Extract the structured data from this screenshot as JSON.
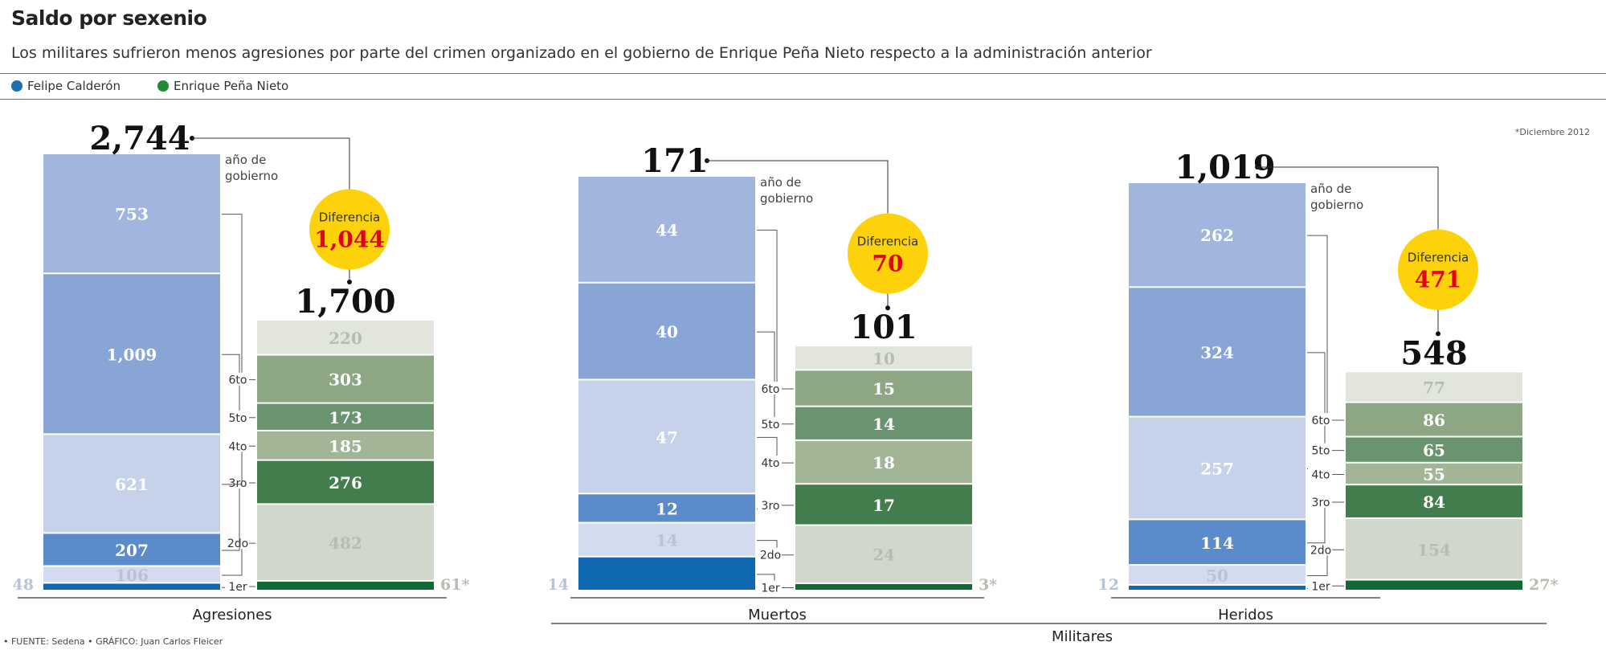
{
  "title": "Saldo por sexenio",
  "subtitle": "Los militares sufrieron menos agresiones por parte del crimen organizado en el gobierno de Enrique Peña Nieto respecto a la administración anterior",
  "legend": [
    {
      "name": "Felipe Calderón",
      "color": "#1a6fb5"
    },
    {
      "name": "Enrique Peña Nieto",
      "color": "#1e8a3a"
    }
  ],
  "footnote": "*Diciembre 2012",
  "source": "• FUENTE: Sedena • GRÁFICO: Juan Carlos Fleicer",
  "group_label": "Militares",
  "diff_label": "Diferencia",
  "year_label": "año de gobierno",
  "colors": {
    "calderon": [
      "#1068b3",
      "#d3dbee",
      "#5b8bcb",
      "#c6d1ea",
      "#88a5d6",
      "#a1b5de"
    ],
    "pena": [
      "#0f6a33",
      "#d1d8cb",
      "#437c4d",
      "#a2b597",
      "#6a9470",
      "#8da683",
      "#e1e5db"
    ],
    "diff_circle": "#fdd20a",
    "diff_text": "#e4001b"
  },
  "chart_data": [
    {
      "type": "stacked-bar",
      "name": "Agresiones",
      "year_labels": [
        "1er",
        "2do",
        "3ro",
        "4to",
        "5to",
        "6to"
      ],
      "calderon": {
        "total": "2,744",
        "values": [
          48,
          106,
          207,
          621,
          1009,
          753
        ],
        "labels": [
          "48",
          "106",
          "207",
          "621",
          "1,009",
          "753"
        ]
      },
      "pena": {
        "total": "1,700",
        "values": [
          61,
          482,
          276,
          185,
          173,
          303,
          220
        ],
        "labels": [
          "61*",
          "482",
          "276",
          "185",
          "173",
          "303",
          "220"
        ]
      },
      "difference": "1,044"
    },
    {
      "type": "stacked-bar",
      "name": "Muertos",
      "year_labels": [
        "1er",
        "2do",
        "3ro",
        "4to",
        "5to",
        "6to"
      ],
      "calderon": {
        "total": "171",
        "values": [
          14,
          14,
          12,
          47,
          40,
          44
        ],
        "labels": [
          "14",
          "14",
          "12",
          "47",
          "40",
          "44"
        ]
      },
      "pena": {
        "total": "101",
        "values": [
          3,
          24,
          17,
          18,
          14,
          15,
          10
        ],
        "labels": [
          "3*",
          "24",
          "17",
          "18",
          "14",
          "15",
          "10"
        ]
      },
      "difference": "70"
    },
    {
      "type": "stacked-bar",
      "name": "Heridos",
      "year_labels": [
        "1er",
        "2do",
        "3ro",
        "4to",
        "5to",
        "6to"
      ],
      "calderon": {
        "total": "1,019",
        "values": [
          12,
          50,
          114,
          257,
          324,
          262
        ],
        "labels": [
          "12",
          "50",
          "114",
          "257",
          "324",
          "262"
        ]
      },
      "pena": {
        "total": "548",
        "values": [
          27,
          154,
          84,
          55,
          65,
          86,
          77
        ],
        "labels": [
          "27*",
          "154",
          "84",
          "55",
          "65",
          "86",
          "77"
        ]
      },
      "difference": "471"
    }
  ]
}
